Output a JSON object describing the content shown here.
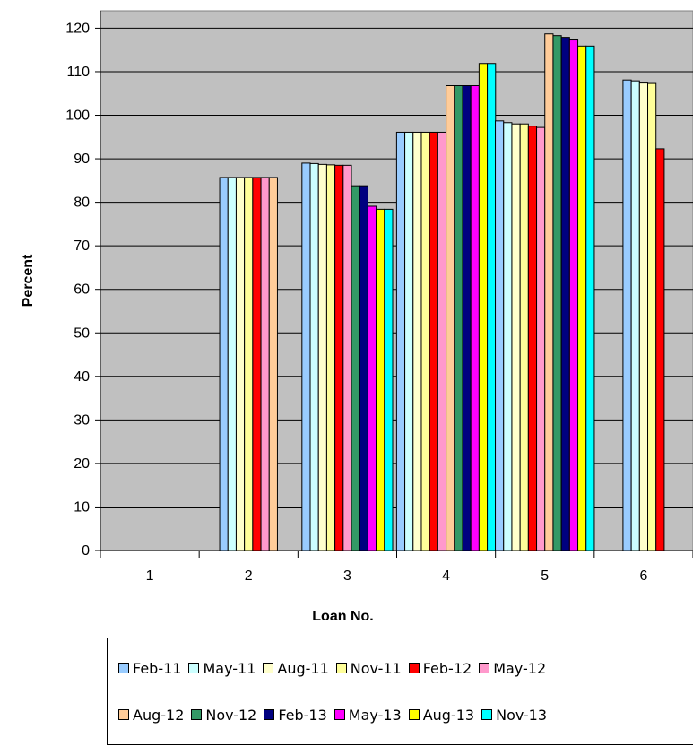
{
  "chart_data": {
    "type": "bar",
    "title": "",
    "xlabel": "Loan No.",
    "ylabel": "Percent",
    "ylim": [
      0,
      124
    ],
    "yticks": [
      0,
      10,
      20,
      30,
      40,
      50,
      60,
      70,
      80,
      90,
      100,
      110,
      120
    ],
    "categories": [
      "1",
      "2",
      "3",
      "4",
      "5",
      "6"
    ],
    "grid": true,
    "legend_position": "bottom",
    "plot_background": "#c0c0c0",
    "series": [
      {
        "name": "Feb-11",
        "color": "#99ccff",
        "values": [
          null,
          85.7,
          89.0,
          96.1,
          98.7,
          108.1
        ]
      },
      {
        "name": "May-11",
        "color": "#ccffff",
        "values": [
          null,
          85.7,
          88.9,
          96.1,
          98.3,
          107.9
        ]
      },
      {
        "name": "Aug-11",
        "color": "#ffffcc",
        "values": [
          null,
          85.7,
          88.7,
          96.1,
          98.0,
          107.4
        ]
      },
      {
        "name": "Nov-11",
        "color": "#ffff99",
        "values": [
          null,
          85.7,
          88.6,
          96.1,
          98.0,
          107.3
        ]
      },
      {
        "name": "Feb-12",
        "color": "#ff0000",
        "values": [
          null,
          85.7,
          88.5,
          96.1,
          97.5,
          92.3
        ]
      },
      {
        "name": "May-12",
        "color": "#ff99cc",
        "values": [
          null,
          85.7,
          88.5,
          96.1,
          97.2,
          null
        ]
      },
      {
        "name": "Aug-12",
        "color": "#ffcc99",
        "values": [
          null,
          85.7,
          null,
          106.8,
          118.7,
          null
        ]
      },
      {
        "name": "Nov-12",
        "color": "#339966",
        "values": [
          null,
          null,
          83.8,
          106.8,
          118.3,
          null
        ]
      },
      {
        "name": "Feb-13",
        "color": "#000080",
        "values": [
          null,
          null,
          83.8,
          106.8,
          117.9,
          null
        ]
      },
      {
        "name": "May-13",
        "color": "#ff00ff",
        "values": [
          null,
          null,
          79.1,
          106.8,
          117.3,
          null
        ]
      },
      {
        "name": "Aug-13",
        "color": "#ffff00",
        "values": [
          null,
          null,
          78.4,
          111.9,
          115.9,
          null
        ]
      },
      {
        "name": "Nov-13",
        "color": "#00ffff",
        "values": [
          null,
          null,
          78.4,
          111.9,
          115.9,
          null
        ]
      }
    ]
  }
}
